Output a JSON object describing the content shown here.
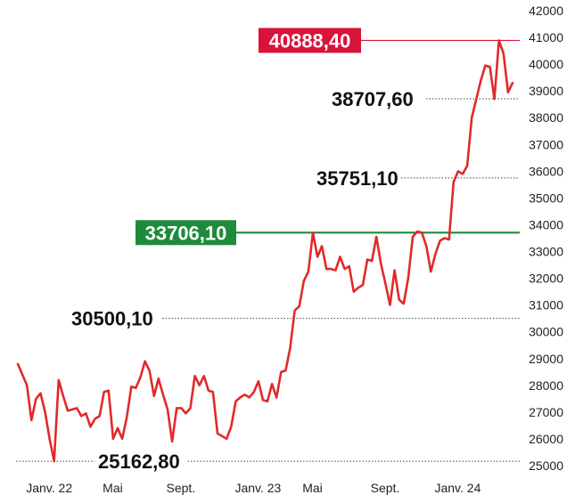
{
  "chart_data": {
    "type": "line",
    "title": "",
    "xlabel": "",
    "ylabel": "",
    "ylim": [
      25000,
      42000
    ],
    "yticks": [
      25000,
      26000,
      27000,
      28000,
      29000,
      30000,
      31000,
      32000,
      33000,
      34000,
      35000,
      36000,
      37000,
      38000,
      39000,
      40000,
      41000,
      42000
    ],
    "xticks": [
      {
        "label": "Janv. 22",
        "index": 2
      },
      {
        "label": "Mai",
        "index": 16
      },
      {
        "label": "Sept.",
        "index": 31
      },
      {
        "label": "Janv. 23",
        "index": 48
      },
      {
        "label": "Mai",
        "index": 60
      },
      {
        "label": "Sept.",
        "index": 76
      },
      {
        "label": "Janv. 24",
        "index": 92
      }
    ],
    "grid": false,
    "line_color": "#e02a2a",
    "series": [
      {
        "values": [
          28800,
          28400,
          28000,
          26700,
          27500,
          27700,
          27000,
          26000,
          25163,
          28200,
          27600,
          27050,
          27100,
          27150,
          26850,
          26950,
          26450,
          26750,
          26850,
          27750,
          27800,
          26000,
          26400,
          26000,
          26800,
          27950,
          27900,
          28300,
          28900,
          28550,
          27600,
          28250,
          27650,
          27100,
          25900,
          27150,
          27150,
          26950,
          27150,
          28350,
          28000,
          28350,
          27800,
          27750,
          26200,
          26100,
          26000,
          26450,
          27400,
          27550,
          27650,
          27550,
          27750,
          28150,
          27450,
          27400,
          28050,
          27550,
          28500,
          28550,
          29400,
          30800,
          30950,
          31900,
          32250,
          33706,
          32800,
          33200,
          32350,
          32350,
          32300,
          32800,
          32350,
          32450,
          31500,
          31650,
          31750,
          32700,
          32650,
          33550,
          32550,
          31800,
          31000,
          32300,
          31200,
          31050,
          32000,
          33550,
          33750,
          33706,
          33200,
          32250,
          32900,
          33400,
          33500,
          33450,
          35600,
          36000,
          35900,
          36200,
          38000,
          38700,
          39400,
          39950,
          39900,
          38700,
          40888,
          40400,
          38950,
          39300
        ]
      }
    ],
    "annotations": [
      {
        "label": "40888,40",
        "value": 40888.4,
        "style": "box",
        "color": "#d8133a"
      },
      {
        "label": "38707,60",
        "value": 38707.6,
        "style": "plain"
      },
      {
        "label": "35751,10",
        "value": 35751.1,
        "style": "plain"
      },
      {
        "label": "33706,10",
        "value": 33706.1,
        "style": "box",
        "color": "#1e8b3a"
      },
      {
        "label": "30500,10",
        "value": 30500.1,
        "style": "plain"
      },
      {
        "label": "25162,80",
        "value": 25162.8,
        "style": "plain"
      }
    ]
  }
}
